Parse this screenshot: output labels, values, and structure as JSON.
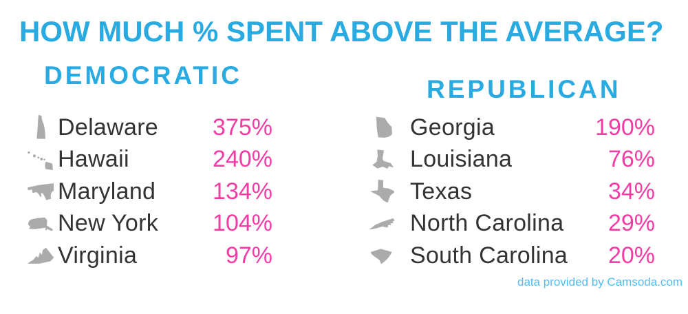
{
  "title": "HOW MUCH % SPENT ABOVE THE AVERAGE?",
  "colors": {
    "blue": "#29ABE2",
    "pink": "#F43CA5",
    "gray": "#ABABAB",
    "dark": "#333333",
    "footer_blue": "#4FBFF2"
  },
  "columns": [
    {
      "id": "democratic",
      "label": "DEMOCRATIC",
      "rows": [
        {
          "state": "Delaware",
          "value": "375%",
          "icon": "delaware-state-icon"
        },
        {
          "state": "Hawaii",
          "value": "240%",
          "icon": "hawaii-state-icon"
        },
        {
          "state": "Maryland",
          "value": "134%",
          "icon": "maryland-state-icon"
        },
        {
          "state": "New York",
          "value": "104%",
          "icon": "new-york-state-icon"
        },
        {
          "state": "Virginia",
          "value": "97%",
          "icon": "virginia-state-icon"
        }
      ]
    },
    {
      "id": "republican",
      "label": "REPUBLICAN",
      "rows": [
        {
          "state": "Georgia",
          "value": "190%",
          "icon": "georgia-state-icon"
        },
        {
          "state": "Louisiana",
          "value": "76%",
          "icon": "louisiana-state-icon"
        },
        {
          "state": "Texas",
          "value": "34%",
          "icon": "texas-state-icon"
        },
        {
          "state": "North Carolina",
          "value": "29%",
          "icon": "north-carolina-state-icon"
        },
        {
          "state": "South Carolina",
          "value": "20%",
          "icon": "south-carolina-state-icon"
        }
      ]
    }
  ],
  "footer": {
    "credit": "data provided by Camsoda.com"
  },
  "chart_data": {
    "type": "table",
    "title": "HOW MUCH % SPENT ABOVE THE AVERAGE?",
    "unit": "%",
    "series": [
      {
        "name": "DEMOCRATIC",
        "categories": [
          "Delaware",
          "Hawaii",
          "Maryland",
          "New York",
          "Virginia"
        ],
        "values": [
          375,
          240,
          134,
          104,
          97
        ]
      },
      {
        "name": "REPUBLICAN",
        "categories": [
          "Georgia",
          "Louisiana",
          "Texas",
          "North Carolina",
          "South Carolina"
        ],
        "values": [
          190,
          76,
          34,
          29,
          20
        ]
      }
    ],
    "source": "data provided by Camsoda.com"
  }
}
